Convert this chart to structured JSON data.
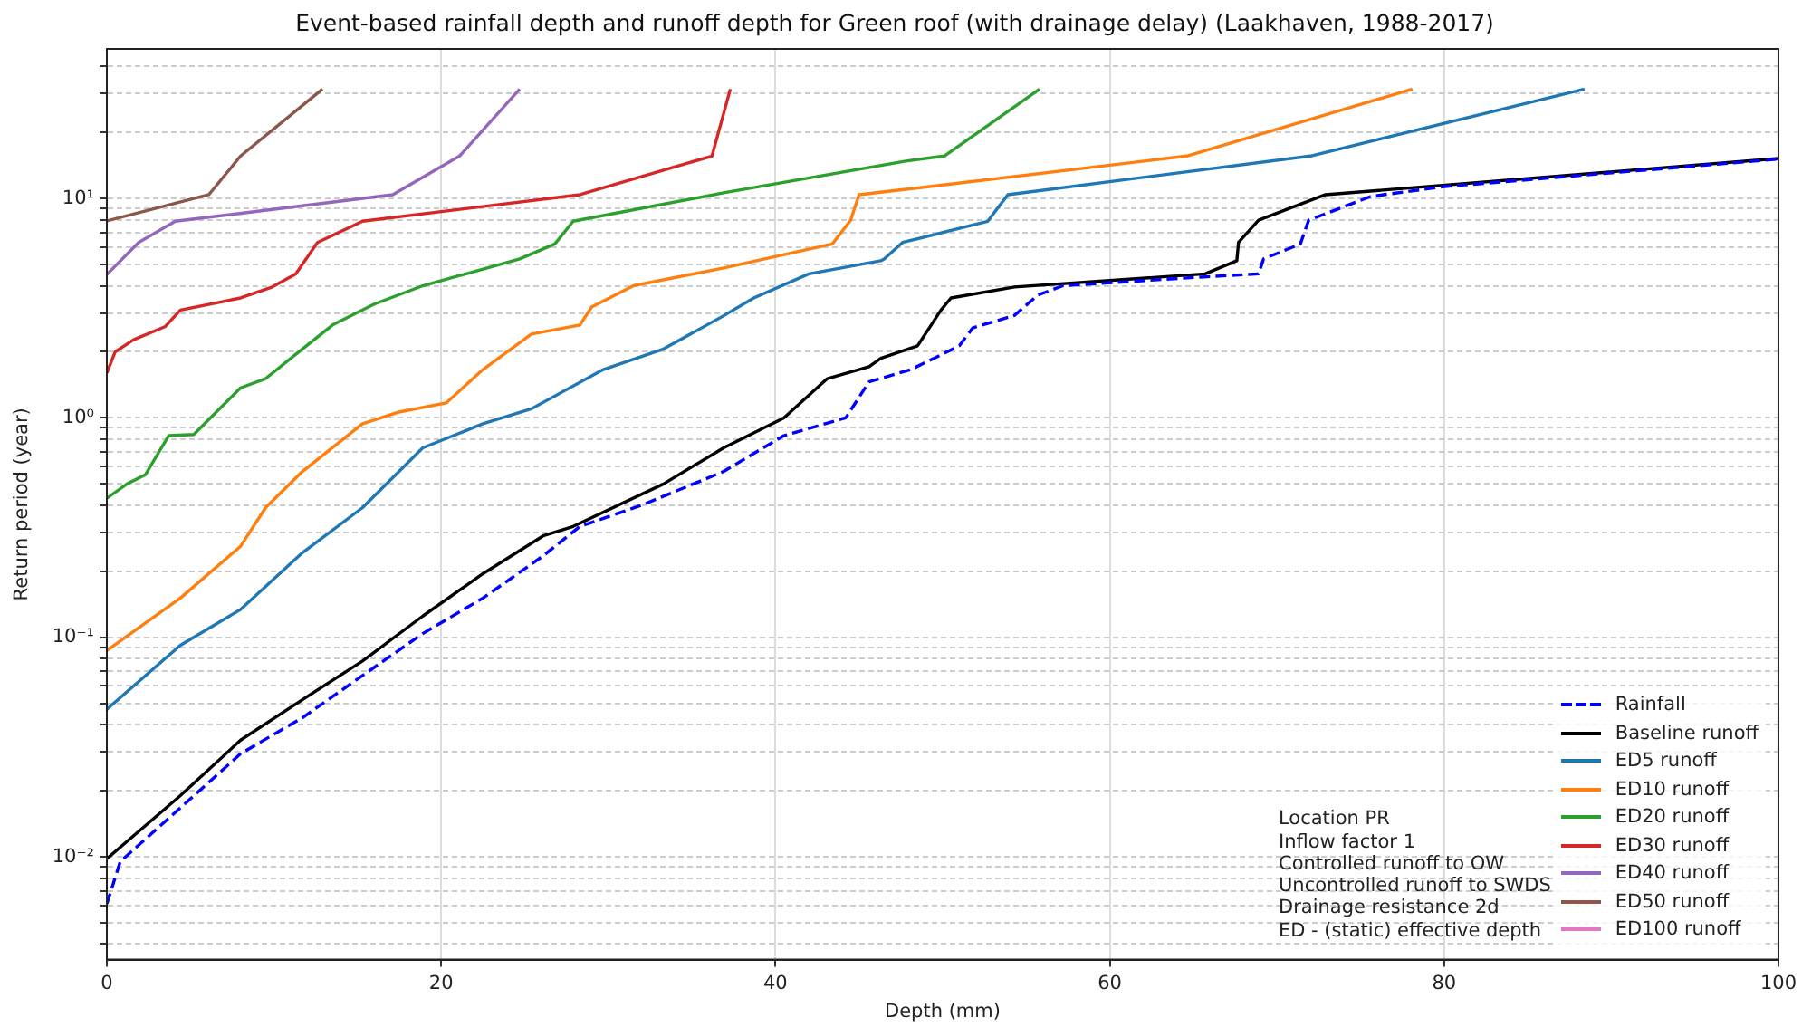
{
  "chart_data": {
    "type": "line",
    "title": "Event-based rainfall depth and runoff depth for Green roof (with drainage delay) (Laakhaven, 1988-2017)",
    "xlabel": "Depth (mm)",
    "ylabel": "Return period (year)",
    "log": "y",
    "grid": true,
    "legend": "bottom right",
    "marker": "none",
    "xlim": [
      0,
      100
    ],
    "xticks": [
      0,
      20,
      40,
      60,
      80,
      100
    ],
    "ylim": [
      0.0034,
      48
    ],
    "yticks": [
      {
        "value": 0.004,
        "label": null
      },
      {
        "value": 0.005,
        "label": null
      },
      {
        "value": 0.006,
        "label": null
      },
      {
        "value": 0.007,
        "label": null
      },
      {
        "value": 0.008,
        "label": null
      },
      {
        "value": 0.009,
        "label": null
      },
      {
        "value": 0.01,
        "label": "10⁻²"
      },
      {
        "value": 0.02,
        "label": null
      },
      {
        "value": 0.03,
        "label": null
      },
      {
        "value": 0.04,
        "label": null
      },
      {
        "value": 0.05,
        "label": null
      },
      {
        "value": 0.06,
        "label": null
      },
      {
        "value": 0.07,
        "label": null
      },
      {
        "value": 0.08,
        "label": null
      },
      {
        "value": 0.09,
        "label": null
      },
      {
        "value": 0.1,
        "label": "10⁻¹"
      },
      {
        "value": 0.2,
        "label": null
      },
      {
        "value": 0.3,
        "label": null
      },
      {
        "value": 0.4,
        "label": null
      },
      {
        "value": 0.5,
        "label": null
      },
      {
        "value": 0.6,
        "label": null
      },
      {
        "value": 0.7,
        "label": null
      },
      {
        "value": 0.8,
        "label": null
      },
      {
        "value": 0.9,
        "label": null
      },
      {
        "value": 1,
        "label": "10⁰"
      },
      {
        "value": 2,
        "label": null
      },
      {
        "value": 3,
        "label": null
      },
      {
        "value": 4,
        "label": null
      },
      {
        "value": 5,
        "label": null
      },
      {
        "value": 6,
        "label": null
      },
      {
        "value": 7,
        "label": null
      },
      {
        "value": 8,
        "label": null
      },
      {
        "value": 9,
        "label": null
      },
      {
        "value": 10,
        "label": "10¹"
      },
      {
        "value": 20,
        "label": null
      },
      {
        "value": 30,
        "label": null
      },
      {
        "value": 40,
        "label": null
      }
    ],
    "series": [
      {
        "name": "Rainfall",
        "color": "#0000ff",
        "line_style": "dashed",
        "x": [
          0,
          0.8,
          4.4,
          8.0,
          11.7,
          15.3,
          18.9,
          22.5,
          26.1,
          28.3,
          32,
          36.9,
          40.5,
          44.2,
          45.6,
          48.1,
          51.0,
          51.8,
          54.3,
          55.7,
          57.2,
          65.4,
          68.9,
          69.2,
          71.4,
          71.9,
          75.6,
          79.9,
          100
        ],
        "values": [
          0.0061,
          0.0095,
          0.0167,
          0.0295,
          0.043,
          0.067,
          0.104,
          0.151,
          0.235,
          0.32,
          0.4,
          0.57,
          0.83,
          1.0,
          1.46,
          1.66,
          2.13,
          2.57,
          2.93,
          3.63,
          4.0,
          4.38,
          4.53,
          5.3,
          6.2,
          7.96,
          10.2,
          11.3,
          15.1
        ]
      },
      {
        "name": "Baseline runoff",
        "color": "#000000",
        "line_style": "solid",
        "x": [
          0,
          4.4,
          8.0,
          11.7,
          15.3,
          18.9,
          22.5,
          26.1,
          27.9,
          33.3,
          36.9,
          40.5,
          43.1,
          45.6,
          46.3,
          48.5,
          49.2,
          49.9,
          50.5,
          54.3,
          65.7,
          67.6,
          67.7,
          68.9,
          72.9,
          100
        ],
        "values": [
          0.0098,
          0.019,
          0.034,
          0.052,
          0.078,
          0.125,
          0.195,
          0.29,
          0.32,
          0.5,
          0.73,
          1.0,
          1.51,
          1.71,
          1.87,
          2.13,
          2.57,
          3.1,
          3.52,
          3.95,
          4.53,
          5.2,
          6.3,
          7.96,
          10.4,
          15.2
        ]
      },
      {
        "name": "ED5 runoff",
        "color": "#1f77b4",
        "line_style": "solid",
        "x": [
          0,
          4.4,
          8.0,
          11.7,
          15.3,
          18.9,
          22.5,
          25.4,
          29.7,
          33.3,
          36.9,
          38.7,
          42.0,
          46.3,
          46.5,
          47.6,
          52.7,
          53.9,
          72.0,
          88.4
        ],
        "values": [
          0.047,
          0.092,
          0.134,
          0.243,
          0.39,
          0.73,
          0.94,
          1.1,
          1.66,
          2.06,
          2.92,
          3.52,
          4.53,
          5.2,
          5.3,
          6.3,
          7.87,
          10.4,
          15.6,
          31.5
        ]
      },
      {
        "name": "ED10 runoff",
        "color": "#ff7f0e",
        "line_style": "solid",
        "x": [
          0,
          4.4,
          8.0,
          9.5,
          11.7,
          15.3,
          17.4,
          20.3,
          22.5,
          25.4,
          28.3,
          29.0,
          31.5,
          36.9,
          43.4,
          44.5,
          45.0,
          47.8,
          64.6,
          78.1
        ],
        "values": [
          0.087,
          0.151,
          0.26,
          0.39,
          0.57,
          0.94,
          1.06,
          1.17,
          1.66,
          2.41,
          2.65,
          3.2,
          4.0,
          4.82,
          6.2,
          7.96,
          10.4,
          11.0,
          15.6,
          31.5
        ]
      },
      {
        "name": "ED20 runoff",
        "color": "#2ca02c",
        "line_style": "solid",
        "x": [
          0,
          1.2,
          2.3,
          3.7,
          5.2,
          8.0,
          9.5,
          11.7,
          13.5,
          16.0,
          18.9,
          24.7,
          26.8,
          27.9,
          36.9,
          47.8,
          50.1,
          55.8
        ],
        "values": [
          0.43,
          0.5,
          0.55,
          0.83,
          0.84,
          1.37,
          1.51,
          2.06,
          2.65,
          3.3,
          4.0,
          5.3,
          6.2,
          7.87,
          10.6,
          14.8,
          15.6,
          31.5
        ]
      },
      {
        "name": "ED30 runoff",
        "color": "#d62728",
        "line_style": "solid",
        "x": [
          0,
          0.5,
          1.6,
          3.5,
          4.4,
          8.0,
          9.9,
          11.3,
          12.6,
          15.3,
          28.3,
          36.2,
          37.3
        ],
        "values": [
          1.6,
          2.0,
          2.27,
          2.61,
          3.1,
          3.52,
          3.95,
          4.53,
          6.3,
          7.87,
          10.4,
          15.6,
          31.5
        ]
      },
      {
        "name": "ED40 runoff",
        "color": "#9467bd",
        "line_style": "solid",
        "x": [
          0,
          1.9,
          4.1,
          17.1,
          21.1,
          24.7
        ],
        "values": [
          4.5,
          6.3,
          7.87,
          10.4,
          15.6,
          31.5
        ]
      },
      {
        "name": "ED50 runoff",
        "color": "#8c564b",
        "line_style": "solid",
        "x": [
          0,
          6.1,
          8.0,
          12.9
        ],
        "values": [
          7.9,
          10.4,
          15.6,
          31.5
        ]
      },
      {
        "name": "ED100 runoff",
        "color": "#e377c2",
        "line_style": "solid"
      }
    ],
    "annotations": [
      "Location PR",
      "Inflow factor 1",
      "Controlled runoff to OW",
      "Uncontrolled runoff to SWDS",
      "Drainage resistance 2d",
      "ED - (static) effective depth"
    ]
  }
}
